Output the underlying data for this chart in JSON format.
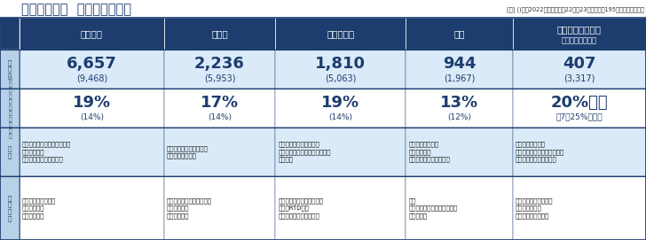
{
  "title": "主な食品分野  価格改定の動向",
  "note": "[注] ()内は2022年の実績値。22年・23年ともに計195社の値上げ品目数",
  "header_bg": "#1c3d6e",
  "header_text": "#ffffff",
  "row_bg_light": "#daeaf8",
  "row_bg_white": "#ffffff",
  "border_color": "#1c3d6e",
  "text_dark": "#1c3d6e",
  "label_bg": "#b8d0e8",
  "columns": [
    "加工食品",
    "調味料",
    "酒類・飲料",
    "菓子",
    "原材料・パンほか"
  ],
  "col_sub": [
    "",
    "",
    "",
    "",
    "（小麦・砂糖類）"
  ],
  "items_main": [
    "6,657",
    "2,236",
    "1,810",
    "944",
    "407"
  ],
  "items_sub": [
    "(9,468)",
    "(5,953)",
    "(5,063)",
    "(1,967)",
    "(3,317)"
  ],
  "rate_main": [
    "19%",
    "17%",
    "19%",
    "13%",
    "20%以上"
  ],
  "rate_sub": [
    "(14%)",
    "(14%)",
    "(14%)",
    "(12%)",
    "（7〜25%程度）"
  ],
  "background": [
    "食肉・水産品などの価格高騰\n物流費の上昇\n円安による輸入コスト増",
    "砂糖、食用油の価格高騰\n包装資材費の上昇",
    "円安による輸入コスト増\n缶・ペットボトルなど包装資材\n費の上昇",
    "食用油の価格高騰\n物流費の上昇\nエネルギーコストの上昇",
    "原材料価格の上昇\n包装資材・運輸コストの上昇\n円安による輸入コスト増"
  ],
  "foods": [
    "冷凍食品、水産缶詰\nシリアル食品\nチルド麺製品",
    "醤油、ソース、ケチャップ\n調理用ワイン\nドレッシング",
    "輸入ワイン・ウィスキー類\n焼酎・RTD飲料\nエナジードリンク・豆乳",
    "米菓\nスナック・チョコレート菓子\nゼリー製品",
    "ホットケーキミックス\nオリーブオイル\n乳幼児用粉ミルク類"
  ],
  "figsize": [
    7.28,
    2.71
  ],
  "dpi": 100
}
